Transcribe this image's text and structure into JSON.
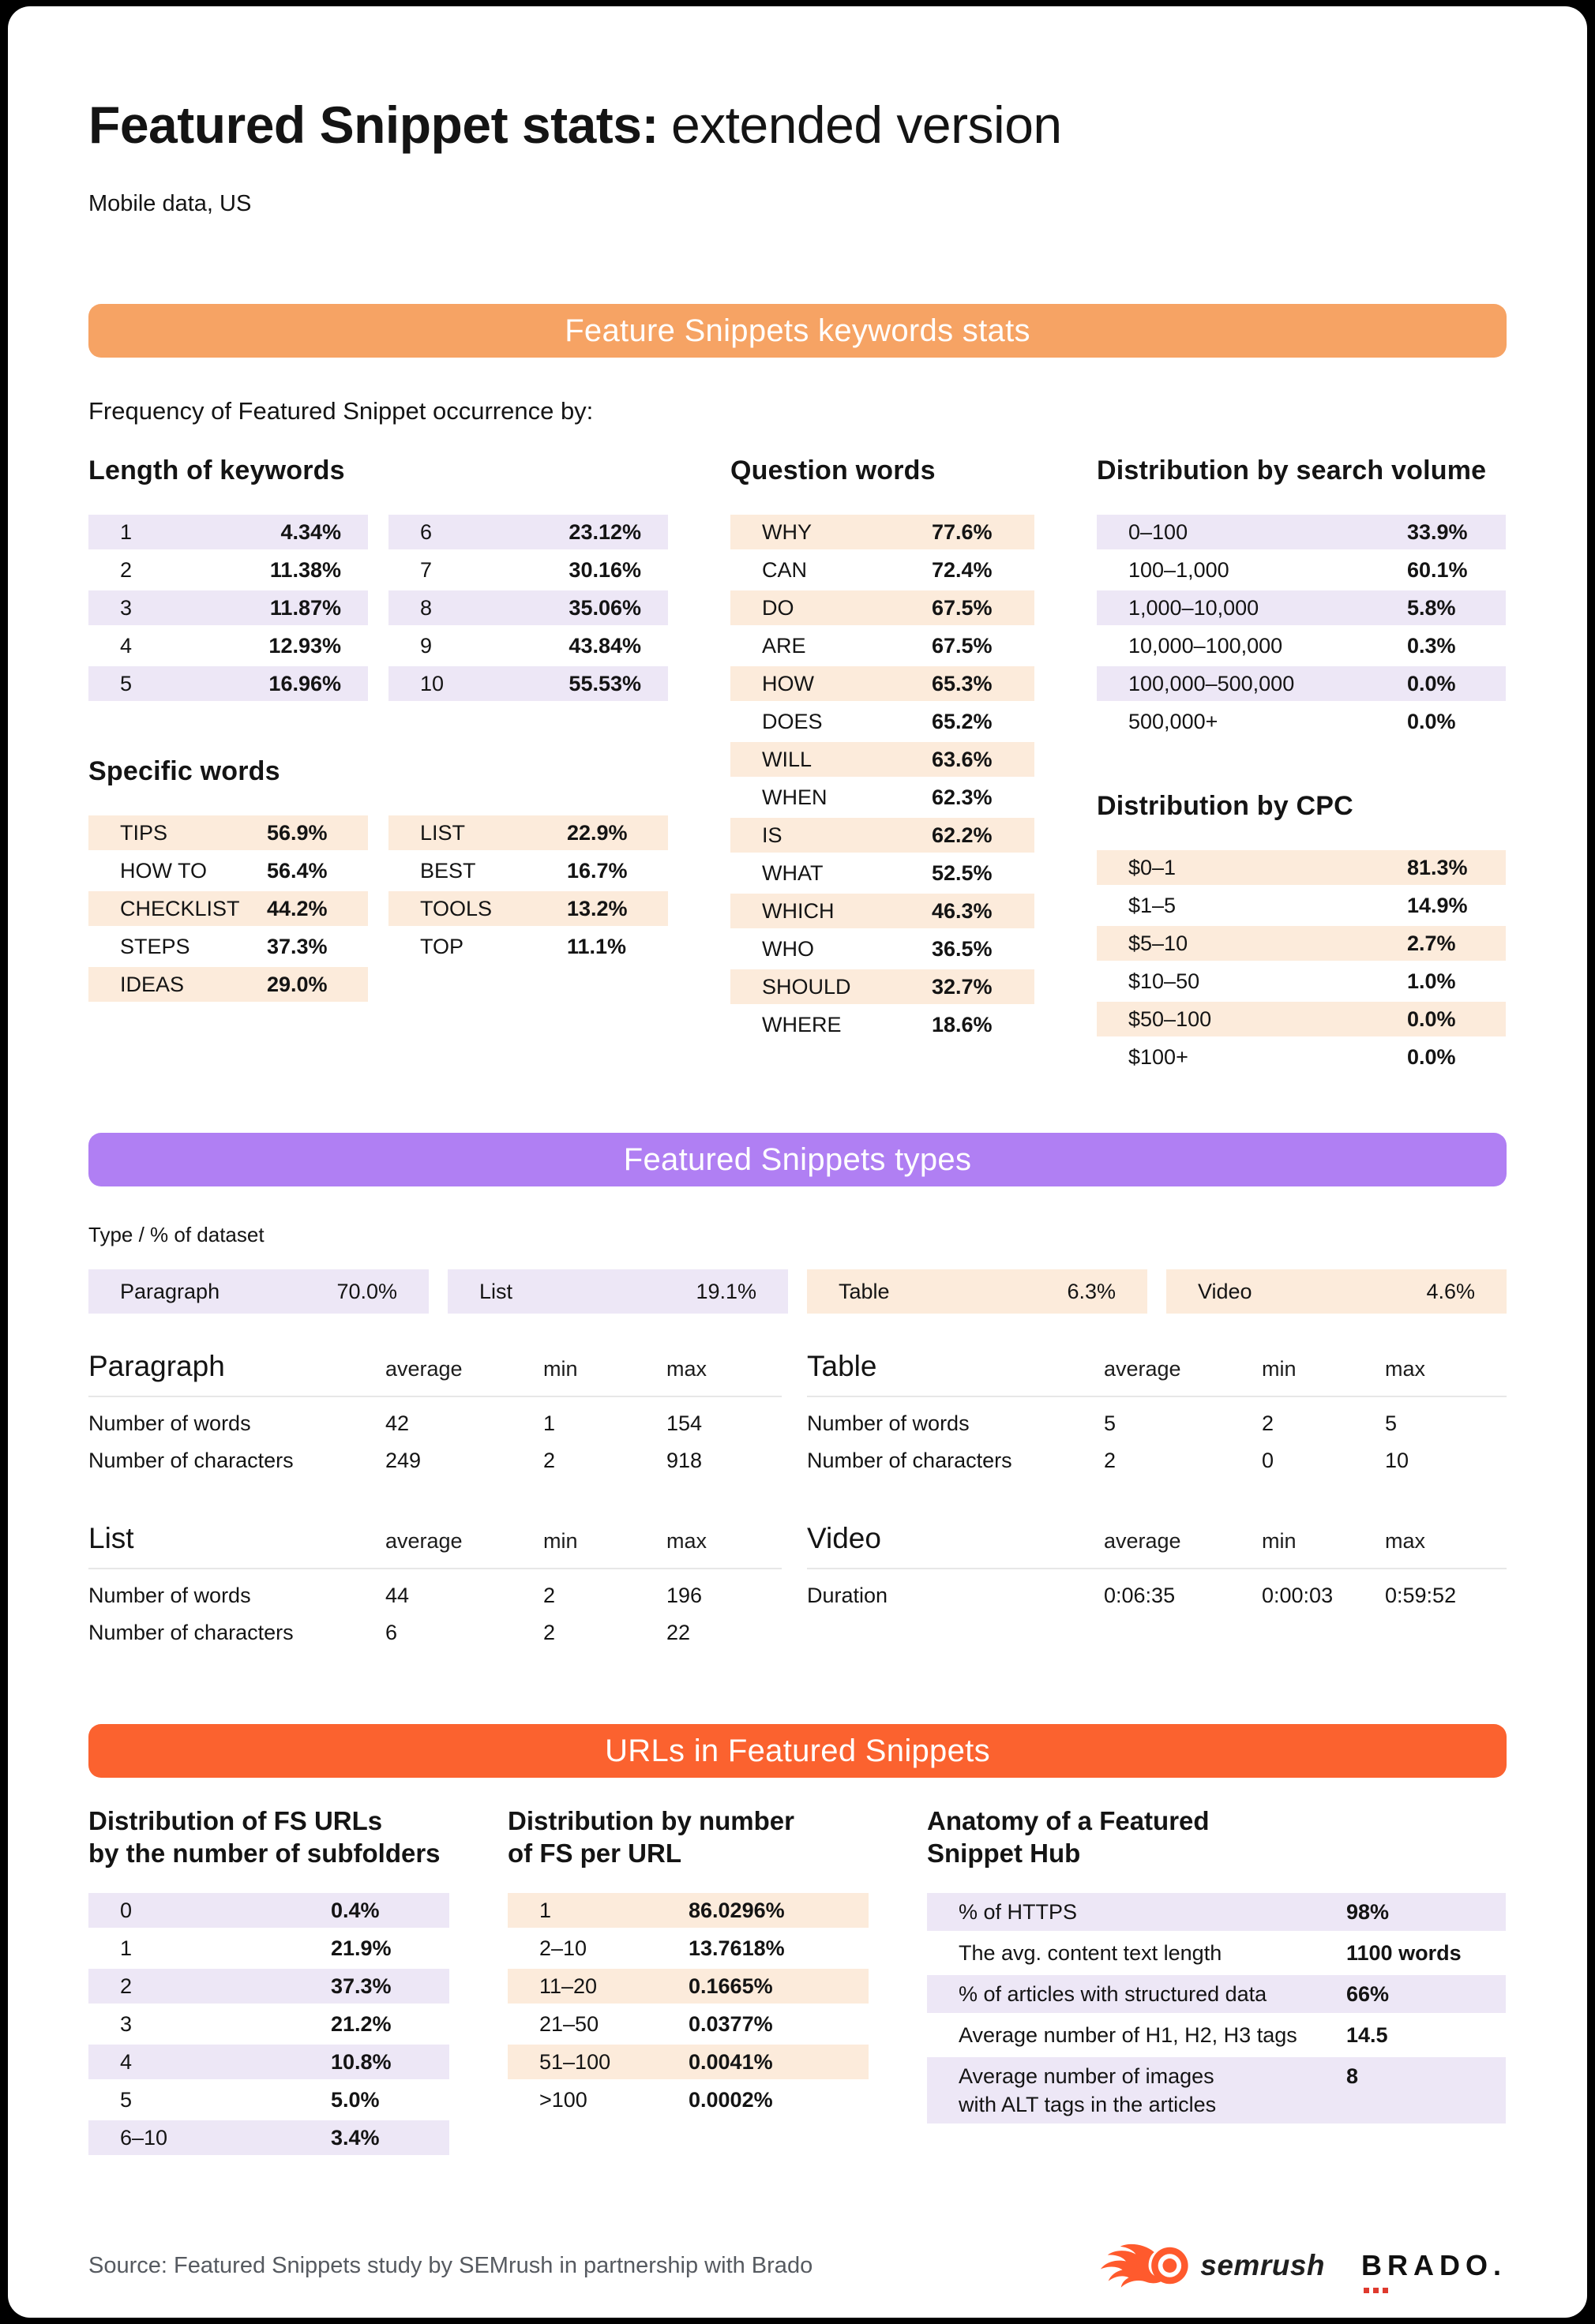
{
  "header": {
    "title_bold": "Featured Snippet stats:",
    "title_light": "extended version",
    "subtitle": "Mobile data, US"
  },
  "colors": {
    "banner_keywords": "#F6A364",
    "banner_types": "#B07FF3",
    "banner_urls": "#FB622F",
    "stripe_lavender": "#EDE7F6",
    "stripe_peach": "#FCEBDB",
    "logo_orange": "#FF5A2D",
    "logo_dot_red": "#DF3A2E",
    "page_background": "#000000",
    "card_background": "#FFFFFF"
  },
  "keywords": {
    "banner": "Feature Snippets keywords stats",
    "intro": "Frequency of Featured Snippet occurrence by:",
    "length": {
      "title": "Length of keywords",
      "col1": [
        [
          "1",
          "4.34%"
        ],
        [
          "2",
          "11.38%"
        ],
        [
          "3",
          "11.87%"
        ],
        [
          "4",
          "12.93%"
        ],
        [
          "5",
          "16.96%"
        ]
      ],
      "col2": [
        [
          "6",
          "23.12%"
        ],
        [
          "7",
          "30.16%"
        ],
        [
          "8",
          "35.06%"
        ],
        [
          "9",
          "43.84%"
        ],
        [
          "10",
          "55.53%"
        ]
      ]
    },
    "specific": {
      "title": "Specific words",
      "col1": [
        [
          "TIPS",
          "56.9%"
        ],
        [
          "HOW TO",
          "56.4%"
        ],
        [
          "CHECKLIST",
          "44.2%"
        ],
        [
          "STEPS",
          "37.3%"
        ],
        [
          "IDEAS",
          "29.0%"
        ]
      ],
      "col2": [
        [
          "LIST",
          "22.9%"
        ],
        [
          "BEST",
          "16.7%"
        ],
        [
          "TOOLS",
          "13.2%"
        ],
        [
          "TOP",
          "11.1%"
        ]
      ]
    },
    "question": {
      "title": "Question words",
      "rows": [
        [
          "WHY",
          "77.6%"
        ],
        [
          "CAN",
          "72.4%"
        ],
        [
          "DO",
          "67.5%"
        ],
        [
          "ARE",
          "67.5%"
        ],
        [
          "HOW",
          "65.3%"
        ],
        [
          "DOES",
          "65.2%"
        ],
        [
          "WILL",
          "63.6%"
        ],
        [
          "WHEN",
          "62.3%"
        ],
        [
          "IS",
          "62.2%"
        ],
        [
          "WHAT",
          "52.5%"
        ],
        [
          "WHICH",
          "46.3%"
        ],
        [
          "WHO",
          "36.5%"
        ],
        [
          "SHOULD",
          "32.7%"
        ],
        [
          "WHERE",
          "18.6%"
        ]
      ]
    },
    "volume": {
      "title": "Distribution by search volume",
      "rows": [
        [
          "0–100",
          "33.9%"
        ],
        [
          "100–1,000",
          "60.1%"
        ],
        [
          "1,000–10,000",
          "5.8%"
        ],
        [
          "10,000–100,000",
          "0.3%"
        ],
        [
          "100,000–500,000",
          "0.0%"
        ],
        [
          "500,000+",
          "0.0%"
        ]
      ]
    },
    "cpc": {
      "title": "Distribution by CPC",
      "rows": [
        [
          "$0–1",
          "81.3%"
        ],
        [
          "$1–5",
          "14.9%"
        ],
        [
          "$5–10",
          "2.7%"
        ],
        [
          "$10–50",
          "1.0%"
        ],
        [
          "$50–100",
          "0.0%"
        ],
        [
          "$100+",
          "0.0%"
        ]
      ]
    }
  },
  "types": {
    "banner": "Featured Snippets types",
    "caption": "Type / % of dataset",
    "pills": [
      {
        "label": "Paragraph",
        "value": "70.0%",
        "tone": "lavender"
      },
      {
        "label": "List",
        "value": "19.1%",
        "tone": "lavender"
      },
      {
        "label": "Table",
        "value": "6.3%",
        "tone": "peach"
      },
      {
        "label": "Video",
        "value": "4.6%",
        "tone": "peach"
      }
    ],
    "stats": [
      {
        "title": "Paragraph",
        "headers": [
          "average",
          "min",
          "max"
        ],
        "rows": [
          [
            "Number of words",
            "42",
            "1",
            "154"
          ],
          [
            "Number of characters",
            "249",
            "2",
            "918"
          ]
        ]
      },
      {
        "title": "Table",
        "headers": [
          "average",
          "min",
          "max"
        ],
        "rows": [
          [
            "Number of words",
            "5",
            "2",
            "5"
          ],
          [
            "Number of characters",
            "2",
            "0",
            "10"
          ]
        ]
      },
      {
        "title": "List",
        "headers": [
          "average",
          "min",
          "max"
        ],
        "rows": [
          [
            "Number of words",
            "44",
            "2",
            "196"
          ],
          [
            "Number of characters",
            "6",
            "2",
            "22"
          ]
        ]
      },
      {
        "title": "Video",
        "headers": [
          "average",
          "min",
          "max"
        ],
        "rows": [
          [
            "Duration",
            "0:06:35",
            "0:00:03",
            "0:59:52"
          ]
        ]
      }
    ]
  },
  "urls": {
    "banner": "URLs in Featured Snippets",
    "subfolders": {
      "title": "Distribution of FS URLs\nby the number of subfolders",
      "rows": [
        [
          "0",
          "0.4%"
        ],
        [
          "1",
          "21.9%"
        ],
        [
          "2",
          "37.3%"
        ],
        [
          "3",
          "21.2%"
        ],
        [
          "4",
          "10.8%"
        ],
        [
          "5",
          "5.0%"
        ],
        [
          "6–10",
          "3.4%"
        ]
      ]
    },
    "fs_per_url": {
      "title": "Distribution by number\nof FS per URL",
      "rows": [
        [
          "1",
          "86.0296%"
        ],
        [
          "2–10",
          "13.7618%"
        ],
        [
          "11–20",
          "0.1665%"
        ],
        [
          "21–50",
          "0.0377%"
        ],
        [
          "51–100",
          "0.0041%"
        ],
        [
          ">100",
          "0.0002%"
        ]
      ]
    },
    "anatomy": {
      "title": "Anatomy of a Featured\nSnippet Hub",
      "rows": [
        [
          "% of HTTPS",
          "98%"
        ],
        [
          "The avg. content text length",
          "1100 words"
        ],
        [
          "% of articles with structured data",
          "66%"
        ],
        [
          "Average number of H1, H2, H3 tags",
          "14.5"
        ],
        [
          "Average number of images\nwith ALT tags in the articles",
          "8"
        ]
      ]
    }
  },
  "footer": {
    "source": "Source: Featured Snippets study by SEMrush in partnership with Brado",
    "semrush_label": "semrush",
    "brado_label": "BRADO.",
    "icons": [
      "semrush-flame-icon",
      "brado-dots-icon"
    ]
  }
}
